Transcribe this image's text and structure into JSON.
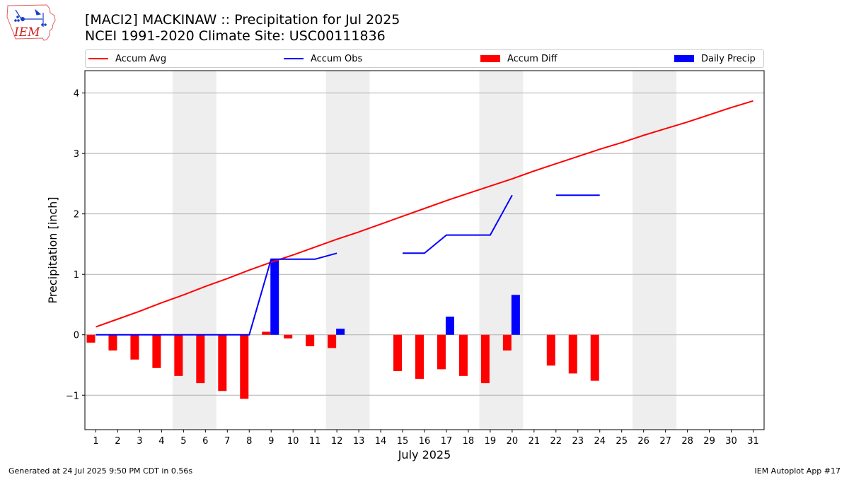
{
  "header": {
    "logo_text": "IEM",
    "title_line1": "[MACI2] MACKINAW :: Precipitation for Jul 2025",
    "title_line2": "NCEI 1991-2020 Climate Site: USC00111836"
  },
  "legend": {
    "items": [
      {
        "label": "Accum Avg",
        "kind": "line",
        "color": "#ff0000"
      },
      {
        "label": "Accum Obs",
        "kind": "line",
        "color": "#0000ff"
      },
      {
        "label": "Accum Diff",
        "kind": "patch",
        "color": "#ff0000"
      },
      {
        "label": "Daily Precip",
        "kind": "patch",
        "color": "#0000ff"
      }
    ]
  },
  "footer": {
    "left": "Generated at 24 Jul 2025 9:50 PM CDT in 0.56s",
    "right": "IEM Autoplot App #17"
  },
  "chart_data": {
    "type": "bar",
    "xlabel": "July 2025",
    "ylabel": "Precipitation [inch]",
    "xlim": [
      0.5,
      31.5
    ],
    "ylim": [
      -1.57,
      4.37
    ],
    "yticks": [
      -1,
      0,
      1,
      2,
      3,
      4
    ],
    "ytick_labels": [
      "−1",
      "0",
      "1",
      "2",
      "3",
      "4"
    ],
    "x": [
      1,
      2,
      3,
      4,
      5,
      6,
      7,
      8,
      9,
      10,
      11,
      12,
      13,
      14,
      15,
      16,
      17,
      18,
      19,
      20,
      21,
      22,
      23,
      24,
      25,
      26,
      27,
      28,
      29,
      30,
      31
    ],
    "grid": "horizontal",
    "weekend_shading": [
      [
        4.5,
        6.5
      ],
      [
        11.5,
        13.5
      ],
      [
        18.5,
        20.5
      ],
      [
        25.5,
        27.5
      ]
    ],
    "weekend_color": "#eeeeee",
    "series": [
      {
        "name": "Accum Avg",
        "kind": "line",
        "color": "#ff0000",
        "values": [
          0.13,
          0.26,
          0.39,
          0.53,
          0.66,
          0.8,
          0.93,
          1.07,
          1.2,
          1.32,
          1.45,
          1.58,
          1.7,
          1.83,
          1.96,
          2.09,
          2.22,
          2.34,
          2.46,
          2.58,
          2.71,
          2.83,
          2.95,
          3.07,
          3.18,
          3.3,
          3.41,
          3.52,
          3.64,
          3.76,
          3.87
        ]
      },
      {
        "name": "Accum Obs",
        "kind": "line",
        "color": "#0000ff",
        "values": [
          0,
          0,
          0,
          0,
          0,
          0,
          0,
          0,
          1.25,
          1.25,
          1.25,
          1.35,
          null,
          null,
          1.35,
          1.35,
          1.65,
          1.65,
          1.65,
          2.31,
          null,
          2.31,
          2.31,
          2.31,
          null,
          null,
          null,
          null,
          null,
          null,
          null
        ]
      },
      {
        "name": "Accum Diff",
        "kind": "bar",
        "color": "#ff0000",
        "values": [
          -0.13,
          -0.26,
          -0.41,
          -0.55,
          -0.68,
          -0.8,
          -0.93,
          -1.06,
          0.05,
          -0.06,
          -0.19,
          -0.22,
          null,
          null,
          -0.6,
          -0.73,
          -0.57,
          -0.68,
          -0.8,
          -0.26,
          null,
          -0.51,
          -0.64,
          -0.76,
          null,
          null,
          null,
          null,
          null,
          null,
          null
        ]
      },
      {
        "name": "Daily Precip",
        "kind": "bar",
        "color": "#0000ff",
        "values": [
          0,
          0,
          0,
          0,
          0,
          0,
          0,
          0,
          1.25,
          0,
          0,
          0.1,
          null,
          null,
          0,
          0,
          0.3,
          0,
          0,
          0.66,
          null,
          0,
          0,
          0,
          null,
          null,
          null,
          null,
          null,
          null,
          null
        ]
      }
    ]
  }
}
